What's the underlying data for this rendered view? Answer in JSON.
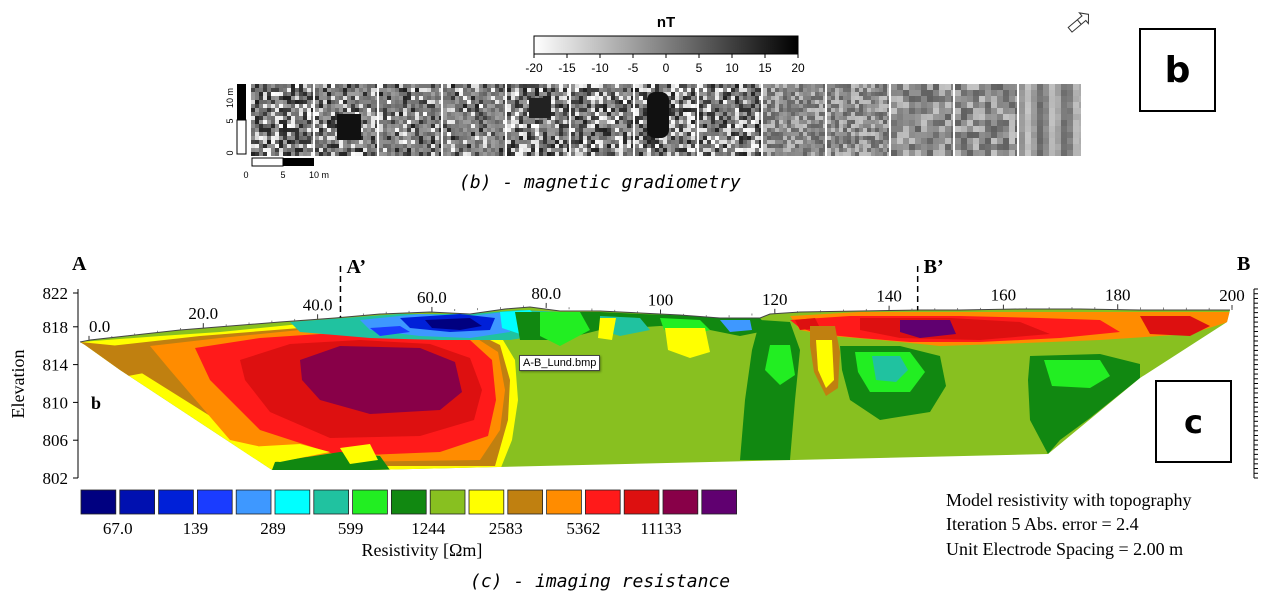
{
  "panel_b": {
    "label": "b",
    "caption": "(b) - magnetic gradiometry",
    "unit": "nT",
    "colorbar_ticks": [
      "-20",
      "-15",
      "-10",
      "-5",
      "0",
      "5",
      "10",
      "15",
      "20"
    ],
    "vertical_scale_ticks": [
      "10 m",
      "5",
      "0"
    ],
    "horizontal_scale_ticks": [
      "0",
      "5",
      "10 m"
    ]
  },
  "panel_c": {
    "label": "c",
    "caption": "(c) - imaging resistance",
    "point_labels": [
      "A",
      "A’",
      "B’",
      "B"
    ],
    "ylabel": "Elevation",
    "section_label": "b",
    "tooltip": "A-B_Lund.bmp",
    "legend_title": "Resistivity [Ωm]",
    "legend_ticks": [
      "67.0",
      "139",
      "289",
      "599",
      "1244",
      "2583",
      "5362",
      "11133"
    ],
    "legend_colors": [
      "#000080",
      "#0010b0",
      "#0020d8",
      "#1a3cff",
      "#3e98ff",
      "#00ffff",
      "#20c2a0",
      "#22ee22",
      "#118811",
      "#88c020",
      "#ffff00",
      "#c08010",
      "#ff8c00",
      "#ff1a1a",
      "#dd1010",
      "#880048",
      "#600070"
    ],
    "info_lines": [
      "Model resistivity with topography",
      "Iteration 5 Abs. error = 2.4",
      "Unit Electrode Spacing = 2.00 m"
    ]
  },
  "chart_data": [
    {
      "type": "heatmap",
      "title": "nT",
      "color_scale": {
        "min": -20,
        "max": 20,
        "colors": [
          "#ffffff",
          "#000000"
        ]
      },
      "x": [
        "0",
        "5",
        "10 m"
      ],
      "y": [
        "0",
        "5",
        "10 m"
      ],
      "tiles": 13
    },
    {
      "type": "heatmap",
      "title": "",
      "xlabel": "",
      "ylabel": "Elevation",
      "x_ticks": [
        "0.0",
        "20.0",
        "40.0",
        "60.0",
        "80.0",
        "100",
        "120",
        "140",
        "160",
        "180",
        "200"
      ],
      "y_ticks": [
        822,
        818,
        814,
        810,
        806,
        802
      ],
      "xlim": [
        0,
        200
      ],
      "ylim": [
        802,
        822
      ],
      "profile_points": [
        {
          "label": "A",
          "x": 0
        },
        {
          "label": "A’",
          "x": 44
        },
        {
          "label": "B’",
          "x": 145
        },
        {
          "label": "B",
          "x": 200
        }
      ],
      "resistivity_scale_ohm_m": [
        67.0,
        139,
        289,
        599,
        1244,
        2583,
        5362,
        11133
      ]
    }
  ]
}
